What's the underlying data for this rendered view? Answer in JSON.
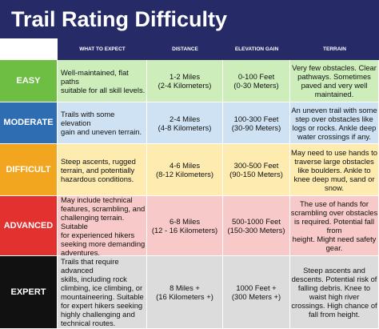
{
  "title": "Trail Rating Difficulty",
  "table": {
    "headers": [
      "WHAT TO EXPECT",
      "DISTANCE",
      "ELEVATION GAIN",
      "TERRAIN"
    ],
    "rows": [
      {
        "rating": "EASY",
        "what": [
          "Well-maintained, flat paths",
          "suitable for all skill levels."
        ],
        "distance": [
          "1-2 Miles",
          "(2-4 Kilometers)"
        ],
        "elevation": [
          "0-100 Feet",
          "(0-30 Meters)"
        ],
        "terrain": [
          "Very few obstacles. Clear",
          "pathways. Sometimes",
          "paved and very well",
          "maintained."
        ]
      },
      {
        "rating": "MODERATE",
        "what": [
          "Trails with some elevation",
          "gain and uneven terrain."
        ],
        "distance": [
          "2-4 Miles",
          "(4-8 Kilometers)"
        ],
        "elevation": [
          "100-300 Feet",
          "(30-90 Meters)"
        ],
        "terrain": [
          "An uneven trail with some",
          "step over obstacles like",
          "logs or rocks. Ankle deep",
          "water crossings if any."
        ]
      },
      {
        "rating": "DIFFICULT",
        "what": [
          "Steep ascents, rugged",
          "terrain, and potentially",
          "hazardous conditions."
        ],
        "distance": [
          "4-6 Miles",
          "(8-12 Kilometers)"
        ],
        "elevation": [
          "300-500 Feet",
          "(90-150 Meters)"
        ],
        "terrain": [
          "May need to use hands to",
          "traverse large obstacles",
          "like boulders. Ankle to",
          "knee deep mud, sand or",
          "snow."
        ]
      },
      {
        "rating": "ADVANCED",
        "what": [
          "May include technical",
          "features, scrambling, and",
          "challenging terrain. Suitable",
          "for experienced hikers",
          "seeking more demanding",
          "adventures."
        ],
        "distance": [
          "6-8 Miles",
          "(12 - 16 Kilometers)"
        ],
        "elevation": [
          "500-1000 Feet",
          "(150-300 Meters)"
        ],
        "terrain": [
          "The use of hands for",
          "scrambling over obstacles",
          "is required. Potential fall from",
          "height. Might need safety",
          "gear."
        ]
      },
      {
        "rating": "EXPERT",
        "what": [
          "Trails that require advanced",
          "skills, including rock",
          "climbing, ice climbing, or",
          "mountaineering. Suitable",
          "for expert hikers seeking",
          "highly challenging and",
          "technical routes."
        ],
        "distance": [
          "8 Miles +",
          "(16 Kilometers +)"
        ],
        "elevation": [
          "1000 Feet +",
          "(300 Meters +)"
        ],
        "terrain": [
          "Steep ascents and",
          "descents. Potential risk of",
          "falling debris. Knee to",
          "waist high river",
          "crossings. High chance of",
          "fall from height."
        ]
      }
    ]
  }
}
